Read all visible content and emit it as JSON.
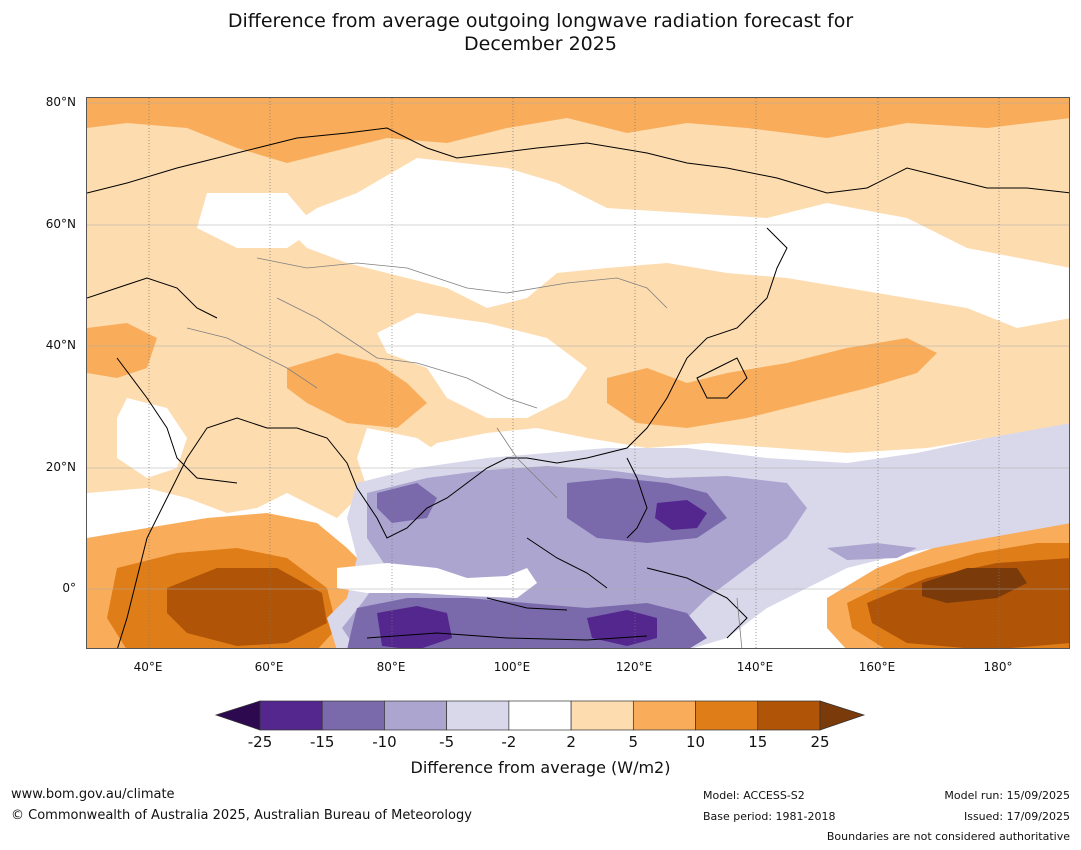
{
  "title_line1": "Difference from average outgoing longwave radiation forecast for",
  "title_line2": "December 2025",
  "lat_labels": [
    "80°N",
    "60°N",
    "40°N",
    "20°N",
    "0°"
  ],
  "lon_labels": [
    "40°E",
    "60°E",
    "80°E",
    "100°E",
    "120°E",
    "140°E",
    "160°E",
    "180°"
  ],
  "colorbar": {
    "ticks": [
      "-25",
      "-15",
      "-10",
      "-5",
      "-2",
      "2",
      "5",
      "10",
      "15",
      "25"
    ],
    "colors": [
      "#2d0a50",
      "#54278f",
      "#7b6aab",
      "#aca5cf",
      "#d9d8ea",
      "#ffffff",
      "#fddcb0",
      "#f9ad5b",
      "#df7d18",
      "#b05407",
      "#7a3a0a"
    ],
    "label": "Difference from average (W/m2)"
  },
  "footer": {
    "website": "www.bom.gov.au/climate",
    "copyright": "© Commonwealth of Australia 2025, Australian Bureau of Meteorology",
    "model": "Model: ACCESS-S2",
    "base_period": "Base period: 1981-2018",
    "model_run": "Model run: 15/09/2025",
    "issued": "Issued: 17/09/2025",
    "disclaimer": "Boundaries are not considered authoritative"
  }
}
